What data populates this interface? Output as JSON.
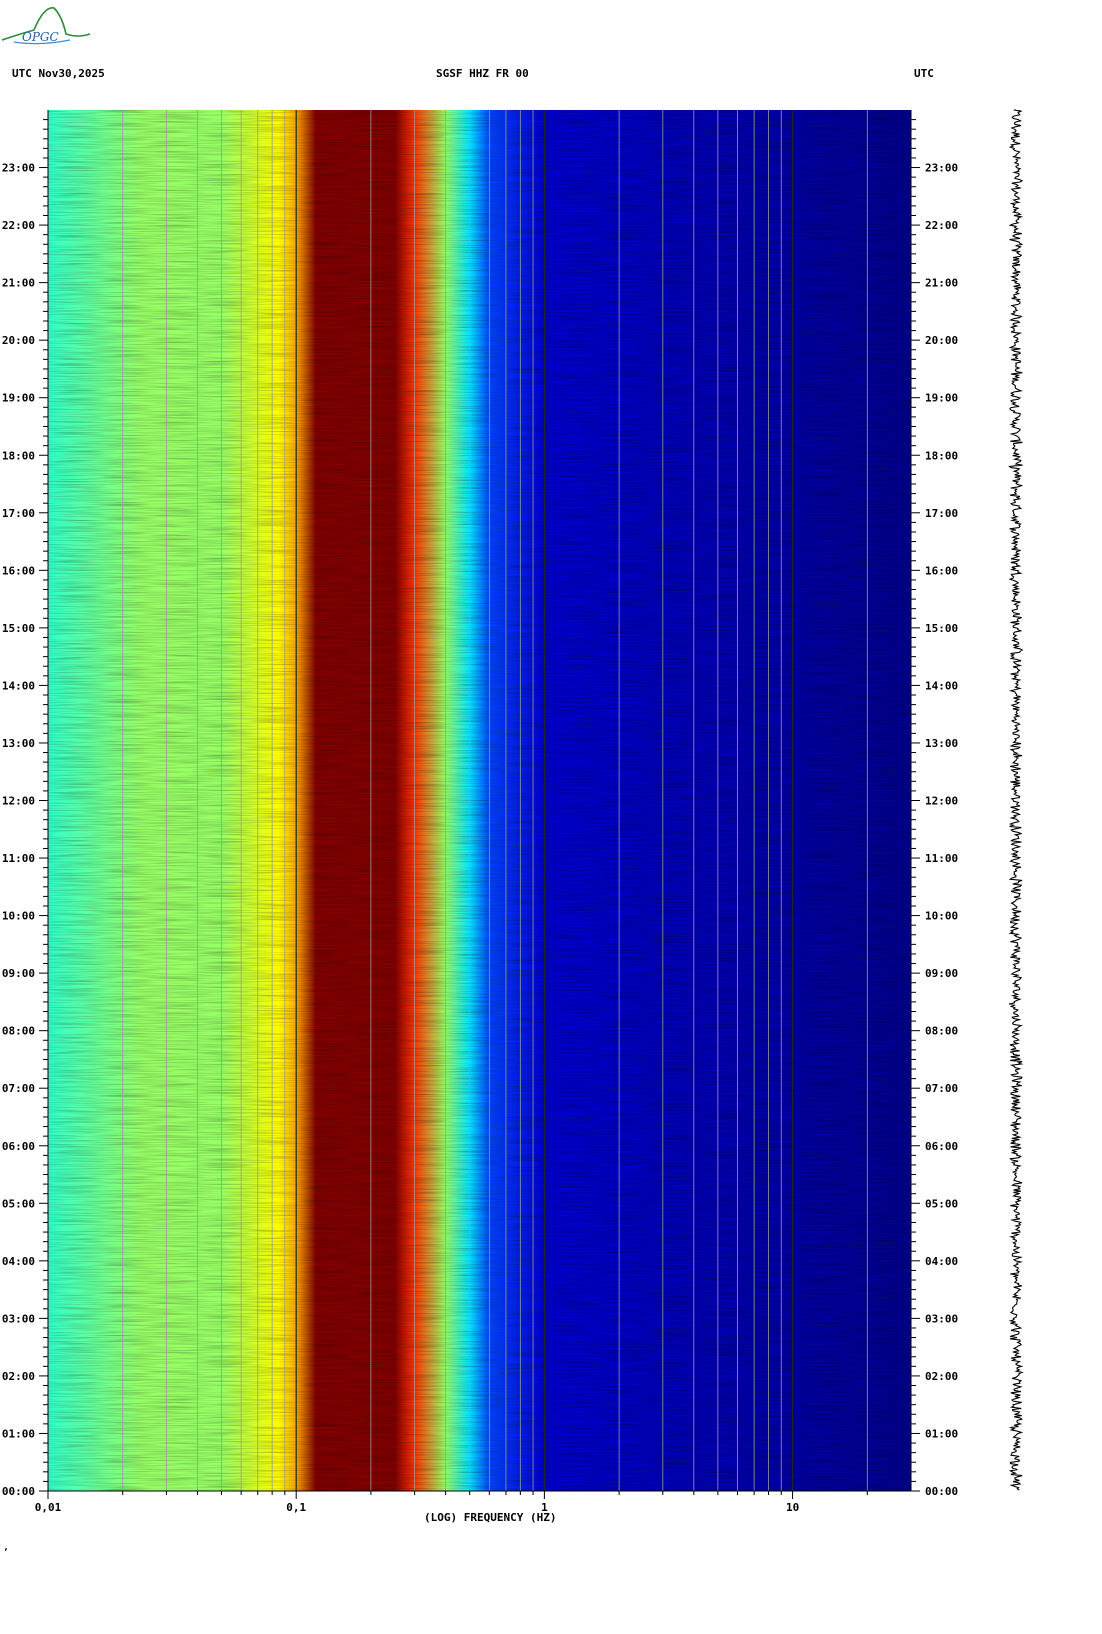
{
  "header": {
    "left_label": "UTC  Nov30,2025",
    "center_label": "SGSF HHZ FR 00",
    "right_label": "UTC",
    "logo_text": "OPGC"
  },
  "footer_mark": "ʼ",
  "chart_data": {
    "type": "heatmap",
    "title": "SGSF HHZ FR 00",
    "xlabel": "(LOG) FREQUENCY (HZ)",
    "ylabel": "UTC",
    "x_scale": "log",
    "xlim": [
      0.01,
      30
    ],
    "x_ticks": [
      {
        "value": 0.01,
        "label": "0,01"
      },
      {
        "value": 0.1,
        "label": "0,1"
      },
      {
        "value": 1,
        "label": "1"
      },
      {
        "value": 10,
        "label": "10"
      }
    ],
    "ylim_hours": [
      0,
      24
    ],
    "y_ticks": [
      {
        "hour": 0,
        "label": "00:00"
      },
      {
        "hour": 1,
        "label": "01:00"
      },
      {
        "hour": 2,
        "label": "02:00"
      },
      {
        "hour": 3,
        "label": "03:00"
      },
      {
        "hour": 4,
        "label": "04:00"
      },
      {
        "hour": 5,
        "label": "05:00"
      },
      {
        "hour": 6,
        "label": "06:00"
      },
      {
        "hour": 7,
        "label": "07:00"
      },
      {
        "hour": 8,
        "label": "08:00"
      },
      {
        "hour": 9,
        "label": "09:00"
      },
      {
        "hour": 10,
        "label": "10:00"
      },
      {
        "hour": 11,
        "label": "11:00"
      },
      {
        "hour": 12,
        "label": "12:00"
      },
      {
        "hour": 13,
        "label": "13:00"
      },
      {
        "hour": 14,
        "label": "14:00"
      },
      {
        "hour": 15,
        "label": "15:00"
      },
      {
        "hour": 16,
        "label": "16:00"
      },
      {
        "hour": 17,
        "label": "17:00"
      },
      {
        "hour": 18,
        "label": "18:00"
      },
      {
        "hour": 19,
        "label": "19:00"
      },
      {
        "hour": 20,
        "label": "20:00"
      },
      {
        "hour": 21,
        "label": "21:00"
      },
      {
        "hour": 22,
        "label": "22:00"
      },
      {
        "hour": 23,
        "label": "23:00"
      }
    ],
    "gridlines_hz": [
      0.02,
      0.03,
      0.04,
      0.05,
      0.06,
      0.07,
      0.08,
      0.09,
      0.1,
      0.2,
      0.3,
      0.4,
      0.5,
      0.6,
      0.7,
      0.8,
      0.9,
      1,
      2,
      3,
      4,
      5,
      6,
      7,
      8,
      9,
      10,
      20
    ],
    "colormap": [
      "#00008b",
      "#0000cd",
      "#0044ff",
      "#0099ff",
      "#00e5ff",
      "#33ffcc",
      "#99ff66",
      "#ffff00",
      "#ffaa00",
      "#ff3300",
      "#cc0000",
      "#800000"
    ],
    "power_profile": [
      {
        "hz": 0.01,
        "level": 0.42
      },
      {
        "hz": 0.024,
        "level": 0.5
      },
      {
        "hz": 0.05,
        "level": 0.55
      },
      {
        "hz": 0.085,
        "level": 0.62
      },
      {
        "hz": 0.1,
        "level": 0.72
      },
      {
        "hz": 0.12,
        "level": 1.0
      },
      {
        "hz": 0.25,
        "level": 1.0
      },
      {
        "hz": 0.3,
        "level": 0.8
      },
      {
        "hz": 0.4,
        "level": 0.55
      },
      {
        "hz": 0.5,
        "level": 0.35
      },
      {
        "hz": 0.6,
        "level": 0.18
      },
      {
        "hz": 1.0,
        "level": 0.06
      },
      {
        "hz": 30,
        "level": 0.0
      }
    ]
  }
}
